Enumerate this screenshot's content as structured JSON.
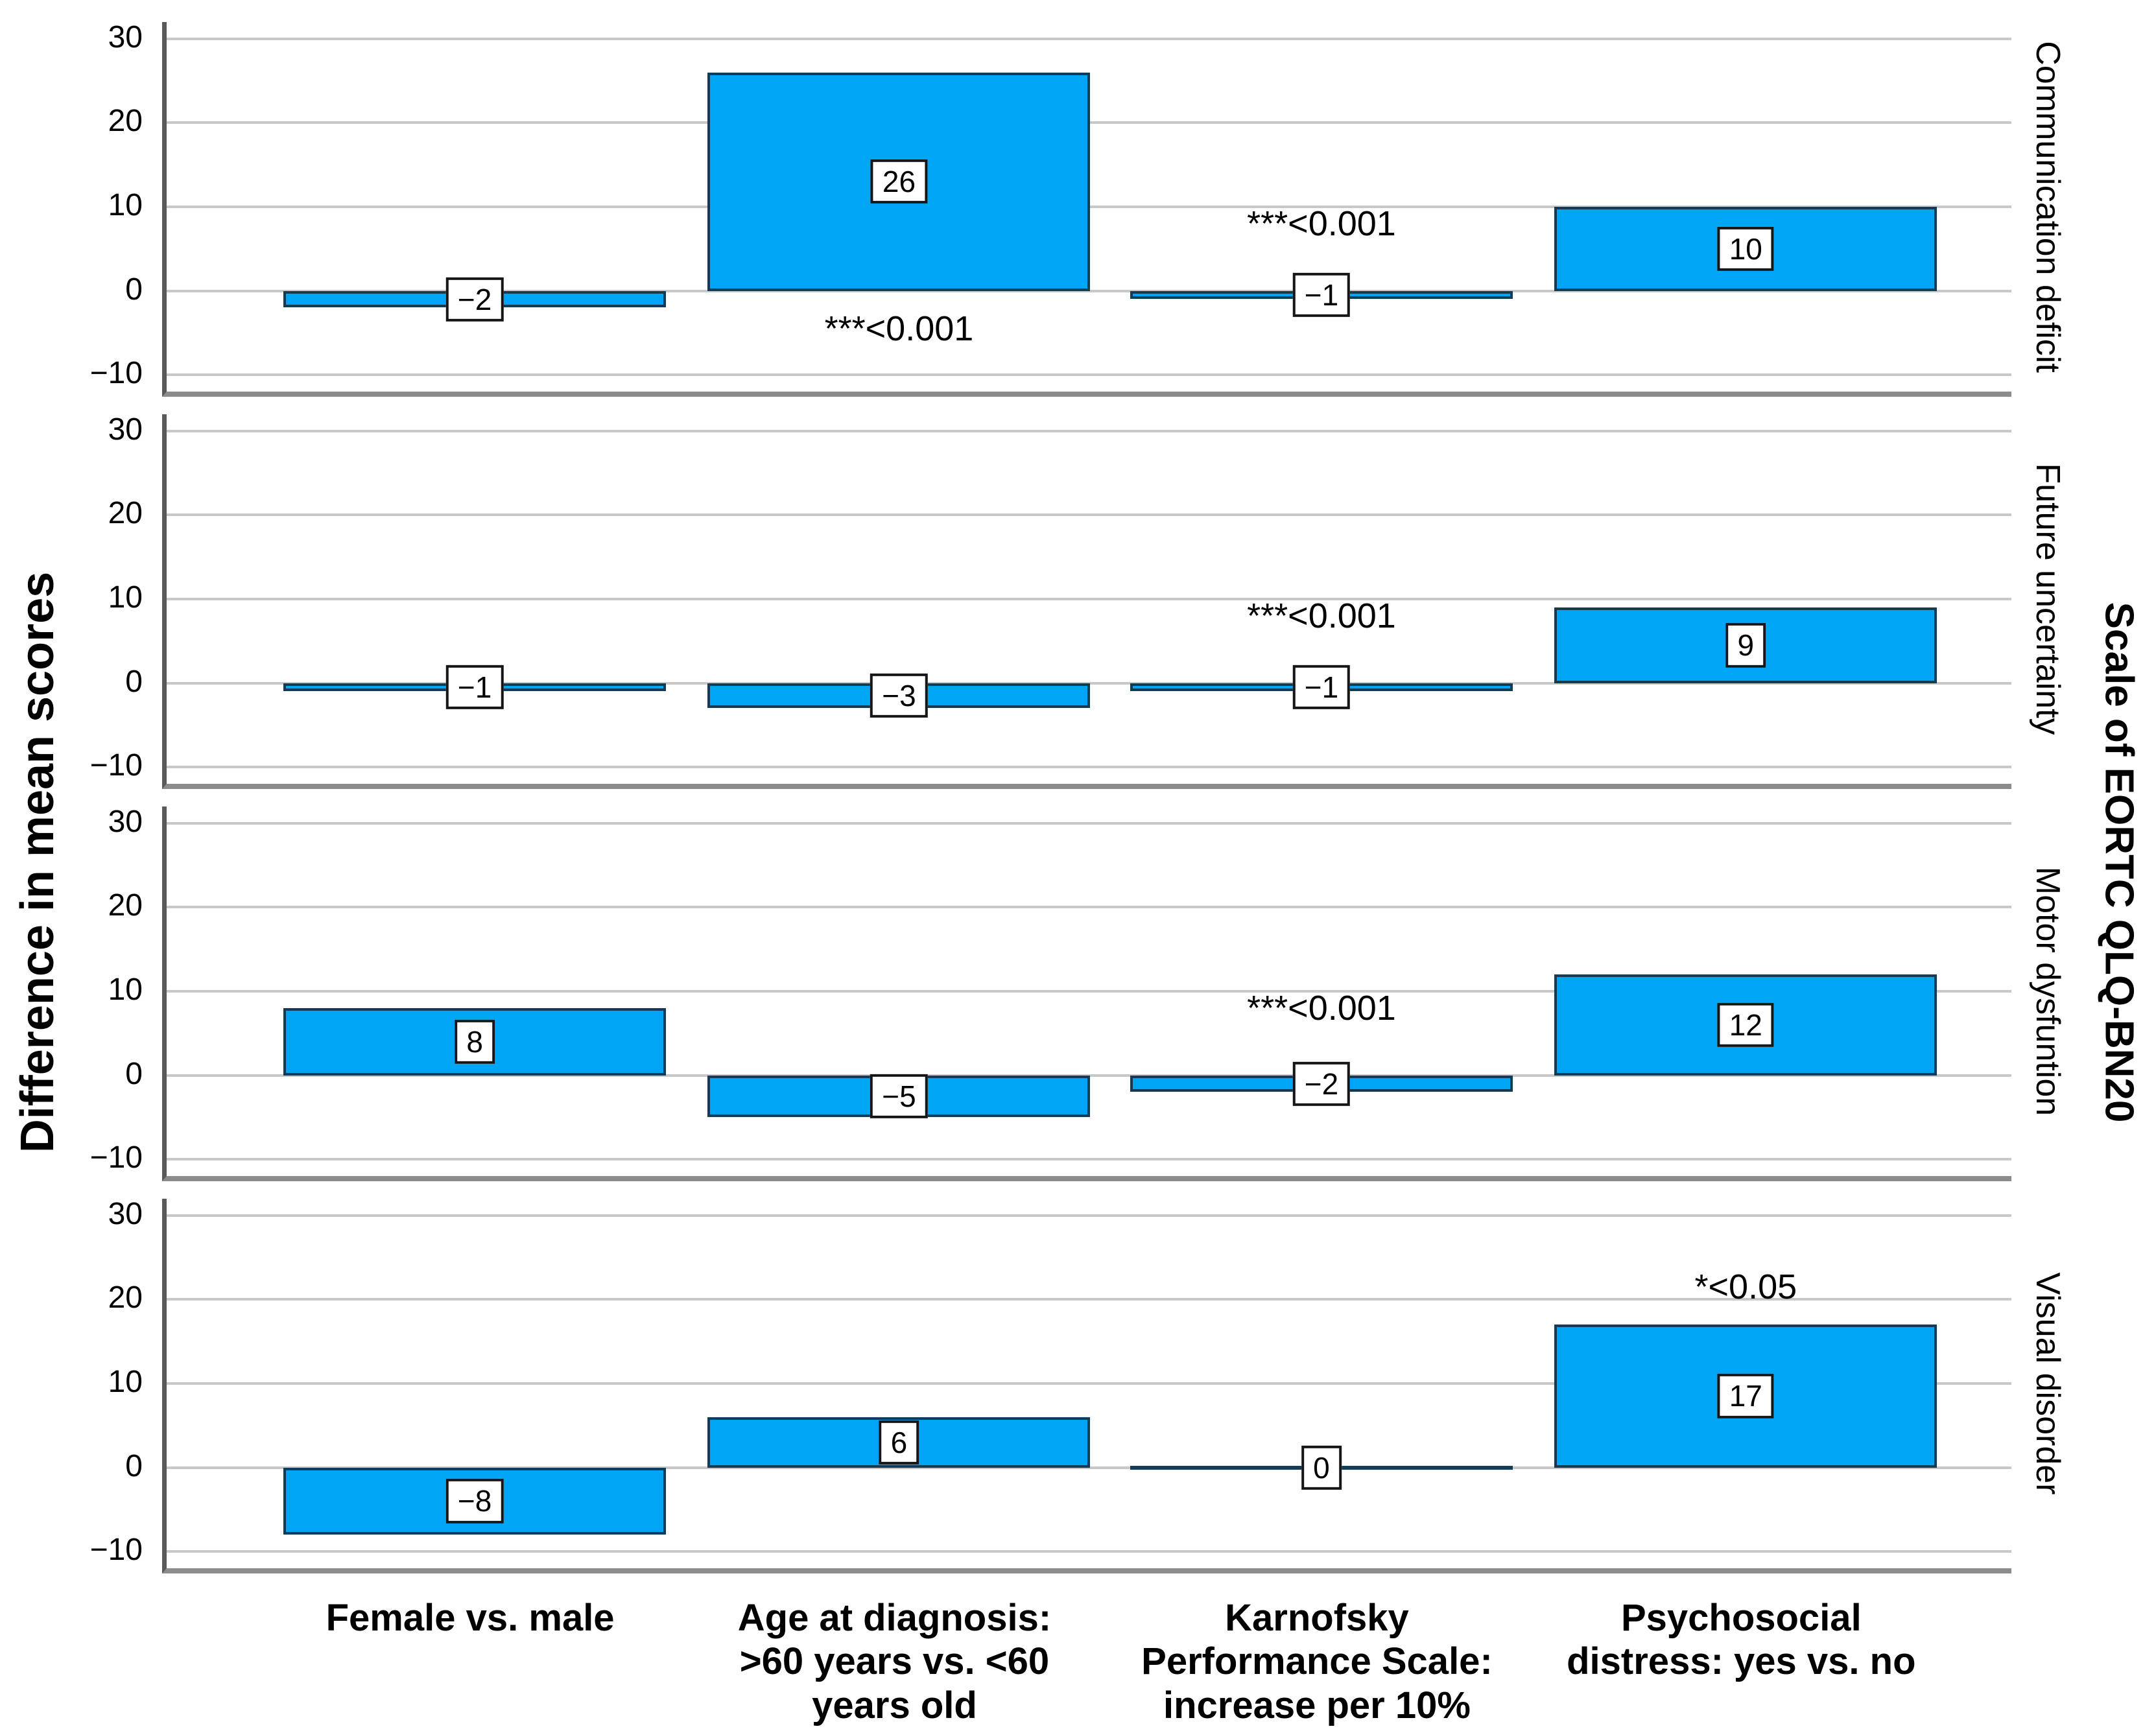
{
  "titles": {
    "y_axis": "Difference in mean scores",
    "right_axis": "Scale of EORTC QLQ-BN20"
  },
  "y_tick_labels": [
    "30",
    "20",
    "10",
    "0",
    "−10"
  ],
  "colors": {
    "bar_fill": "#00A6F4",
    "bar_border": "#123B55",
    "gridline": "#C8C8C8",
    "axis_line": "#5A5A5A",
    "panel_bottom_border": "#8C8C8C",
    "label_box_bg": "#FFFFFF",
    "text": "#000000"
  },
  "chart_data": {
    "type": "bar",
    "title": "",
    "xlabel": "",
    "ylabel": "Difference in mean scores",
    "right_label": "Scale of EORTC QLQ-BN20",
    "ylim": [
      -12,
      32
    ],
    "gridlines": [
      30,
      20,
      10,
      0,
      -10
    ],
    "grid": true,
    "legend_position": "none",
    "categories": [
      "Female vs. male",
      "Age at diagnosis:\n>60 years vs. <60\nyears old",
      "Karnofsky\nPerformance Scale:\nincrease per 10%",
      "Psychosocial\ndistress: yes vs. no"
    ],
    "panels": [
      {
        "scale": "Communication deficit",
        "values": [
          -2,
          26,
          -1,
          10
        ],
        "annotations": [
          {
            "bar_index": 1,
            "text": "***<0.001",
            "position": "below"
          },
          {
            "bar_index": 2,
            "text": "***<0.001",
            "position": "above"
          }
        ]
      },
      {
        "scale": "Future uncertainty",
        "values": [
          -1,
          -3,
          -1,
          9
        ],
        "annotations": [
          {
            "bar_index": 2,
            "text": "***<0.001",
            "position": "above"
          }
        ]
      },
      {
        "scale": "Motor dysfuntion",
        "values": [
          8,
          -5,
          -2,
          12
        ],
        "annotations": [
          {
            "bar_index": 2,
            "text": "***<0.001",
            "position": "above"
          }
        ]
      },
      {
        "scale": "Visual disorder",
        "values": [
          -8,
          6,
          0,
          17
        ],
        "annotations": [
          {
            "bar_index": 3,
            "text": "*<0.05",
            "position": "above"
          }
        ]
      }
    ]
  }
}
